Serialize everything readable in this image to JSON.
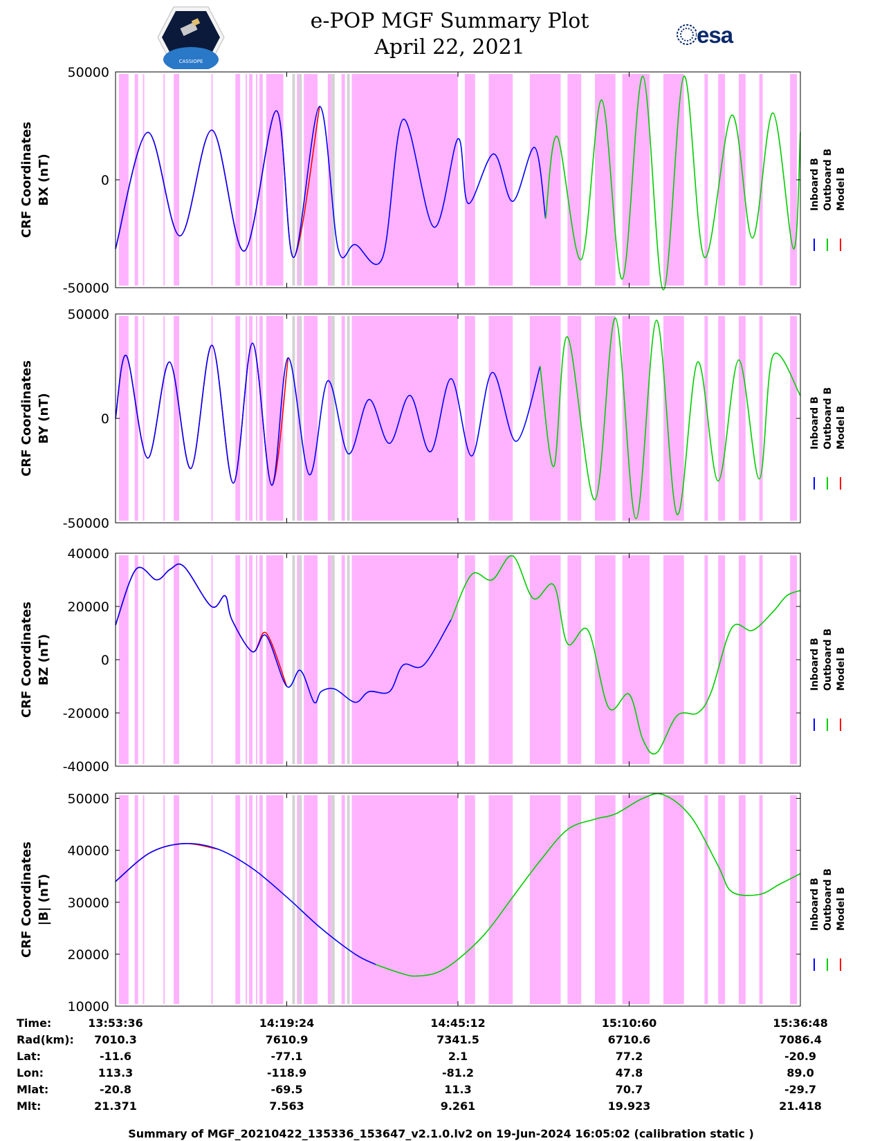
{
  "header": {
    "title": "e-POP MGF Summary Plot",
    "date": "April 22, 2021",
    "left_logo_text": "CASSIOPE",
    "right_logo_text": "esa"
  },
  "colors": {
    "inboard": "#0000ff",
    "outboard": "#00cc00",
    "model": "#ff0000",
    "shade_primary": "#ffb3ff",
    "shade_secondary": "#d3d3d3"
  },
  "legend": {
    "labels": [
      "Inboard B",
      "Outboard B",
      "Model B"
    ]
  },
  "chart_data": [
    {
      "type": "line",
      "ylabel_line1": "CRF Coordinates",
      "ylabel_line2": "BX (nT)",
      "ylim": [
        -50000,
        50000
      ],
      "yticks": [
        "50000",
        "0",
        "-50000"
      ],
      "ytick_values": [
        50000,
        0,
        -50000
      ],
      "series": [
        {
          "name": "Inboard B",
          "x": [
            0.0,
            0.047,
            0.094,
            0.141,
            0.188,
            0.235,
            0.26,
            0.298,
            0.325,
            0.35,
            0.39,
            0.42,
            0.465,
            0.5,
            0.515,
            0.552,
            0.58,
            0.612,
            0.628
          ],
          "values": [
            -32000,
            22000,
            -26000,
            23000,
            -33000,
            32000,
            -36000,
            34000,
            -32000,
            -30000,
            -36000,
            28000,
            -22000,
            19000,
            -11000,
            12000,
            -10000,
            15000,
            -18000
          ]
        },
        {
          "name": "Outboard B",
          "x": [
            0.628,
            0.645,
            0.68,
            0.71,
            0.74,
            0.77,
            0.8,
            0.83,
            0.86,
            0.9,
            0.93,
            0.96,
            0.99,
            1.0
          ],
          "values": [
            -18000,
            20000,
            -37000,
            37000,
            -46000,
            48000,
            -51000,
            48000,
            -36000,
            30000,
            -27000,
            31000,
            -32000,
            22000
          ]
        },
        {
          "name": "Model B",
          "x": [
            0.0,
            0.047,
            0.094,
            0.141,
            0.188,
            0.235,
            0.26,
            0.298
          ],
          "values": [
            -32000,
            22000,
            -26000,
            23000,
            -33000,
            32000,
            -36000,
            34000
          ]
        }
      ]
    },
    {
      "type": "line",
      "ylabel_line1": "CRF Coordinates",
      "ylabel_line2": "BY (nT)",
      "ylim": [
        -50000,
        50000
      ],
      "yticks": [
        "50000",
        "0",
        "-50000"
      ],
      "ytick_values": [
        50000,
        0,
        -50000
      ],
      "series": [
        {
          "name": "Inboard B",
          "x": [
            0.0,
            0.016,
            0.047,
            0.079,
            0.11,
            0.141,
            0.172,
            0.2,
            0.228,
            0.252,
            0.283,
            0.31,
            0.34,
            0.37,
            0.4,
            0.43,
            0.46,
            0.49,
            0.52,
            0.55,
            0.585,
            0.62
          ],
          "values": [
            0,
            30000,
            -19000,
            27000,
            -24000,
            35000,
            -31000,
            36000,
            -32000,
            29000,
            -27000,
            18000,
            -17000,
            9000,
            -12000,
            11000,
            -16000,
            19000,
            -18000,
            22000,
            -11000,
            25000
          ]
        },
        {
          "name": "Outboard B",
          "x": [
            0.62,
            0.64,
            0.66,
            0.7,
            0.73,
            0.76,
            0.79,
            0.82,
            0.85,
            0.88,
            0.91,
            0.94,
            0.96,
            1.0
          ],
          "values": [
            25000,
            -23000,
            39000,
            -39000,
            48000,
            -48000,
            47000,
            -46000,
            27000,
            -30000,
            28000,
            -29000,
            30000,
            11000
          ]
        },
        {
          "name": "Model B",
          "x": [
            0.0,
            0.016,
            0.047,
            0.079,
            0.11,
            0.141,
            0.172,
            0.2,
            0.228,
            0.252
          ],
          "values": [
            0,
            30000,
            -19000,
            27000,
            -24000,
            35000,
            -31000,
            36000,
            -32000,
            29000
          ]
        }
      ]
    },
    {
      "type": "line",
      "ylabel_line1": "CRF Coordinates",
      "ylabel_line2": "BZ (nT)",
      "ylim": [
        -40000,
        40000
      ],
      "yticks": [
        "40000",
        "20000",
        "0",
        "-20000",
        "-40000"
      ],
      "ytick_values": [
        40000,
        20000,
        0,
        -20000,
        -40000
      ],
      "series": [
        {
          "name": "Inboard B",
          "x": [
            0.0,
            0.03,
            0.06,
            0.08,
            0.1,
            0.14,
            0.16,
            0.17,
            0.2,
            0.22,
            0.25,
            0.27,
            0.29,
            0.3,
            0.32,
            0.35,
            0.37,
            0.4,
            0.42,
            0.45,
            0.49
          ],
          "values": [
            13000,
            34000,
            30000,
            34000,
            35000,
            20000,
            24000,
            15000,
            3000,
            9000,
            -10000,
            -4000,
            -16000,
            -12000,
            -11000,
            -16000,
            -12000,
            -12000,
            -2000,
            -2000,
            15000
          ]
        },
        {
          "name": "Outboard B",
          "x": [
            0.49,
            0.52,
            0.55,
            0.58,
            0.61,
            0.64,
            0.66,
            0.69,
            0.72,
            0.75,
            0.77,
            0.79,
            0.82,
            0.85,
            0.87,
            0.9,
            0.93,
            0.96,
            0.98,
            1.0
          ],
          "values": [
            15000,
            32000,
            30000,
            39000,
            23000,
            28000,
            6000,
            11000,
            -18000,
            -13000,
            -30000,
            -35000,
            -21000,
            -20000,
            -12000,
            12000,
            11000,
            18000,
            24000,
            26000
          ]
        },
        {
          "name": "Model B",
          "x": [
            0.0,
            0.03,
            0.06,
            0.08,
            0.1,
            0.14,
            0.16,
            0.17,
            0.2,
            0.22,
            0.25
          ],
          "values": [
            13000,
            34000,
            30000,
            34000,
            35000,
            20000,
            24000,
            15000,
            3000,
            10000,
            -10000
          ]
        }
      ]
    },
    {
      "type": "line",
      "ylabel_line1": "CRF Coordinates",
      "ylabel_line2": "|B| (nT)",
      "ylim": [
        10000,
        51000
      ],
      "yticks": [
        "50000",
        "40000",
        "30000",
        "20000",
        "10000"
      ],
      "ytick_values": [
        50000,
        40000,
        30000,
        20000,
        10000
      ],
      "series": [
        {
          "name": "Inboard B",
          "x": [
            0.0,
            0.05,
            0.1,
            0.15,
            0.2,
            0.25,
            0.3,
            0.35,
            0.38
          ],
          "values": [
            34000,
            39500,
            41300,
            40200,
            36500,
            31000,
            25000,
            20000,
            18000
          ]
        },
        {
          "name": "Outboard B",
          "x": [
            0.38,
            0.42,
            0.44,
            0.47,
            0.5,
            0.54,
            0.58,
            0.62,
            0.66,
            0.7,
            0.73,
            0.77,
            0.8,
            0.84,
            0.88,
            0.9,
            0.94,
            0.97,
            1.0
          ],
          "values": [
            18000,
            16200,
            15800,
            16500,
            19000,
            24000,
            31000,
            38000,
            44000,
            46000,
            47000,
            50000,
            50700,
            46500,
            37000,
            32000,
            31500,
            33500,
            35500
          ]
        },
        {
          "name": "Model B",
          "x": [
            0.0,
            0.05,
            0.1,
            0.15
          ],
          "values": [
            34000,
            39500,
            41300,
            40200
          ]
        }
      ]
    }
  ],
  "shading": {
    "primary_bands": [
      [
        0.005,
        0.019
      ],
      [
        0.028,
        0.033
      ],
      [
        0.04,
        0.042
      ],
      [
        0.07,
        0.072
      ],
      [
        0.085,
        0.093
      ],
      [
        0.14,
        0.142
      ],
      [
        0.175,
        0.182
      ],
      [
        0.19,
        0.192
      ],
      [
        0.195,
        0.2
      ],
      [
        0.205,
        0.207
      ],
      [
        0.21,
        0.215
      ],
      [
        0.22,
        0.245
      ],
      [
        0.26,
        0.262
      ],
      [
        0.265,
        0.27
      ],
      [
        0.275,
        0.295
      ],
      [
        0.31,
        0.315
      ],
      [
        0.33,
        0.335
      ],
      [
        0.345,
        0.5
      ],
      [
        0.51,
        0.525
      ],
      [
        0.545,
        0.58
      ],
      [
        0.605,
        0.65
      ],
      [
        0.66,
        0.68
      ],
      [
        0.7,
        0.73
      ],
      [
        0.74,
        0.78
      ],
      [
        0.8,
        0.83
      ],
      [
        0.86,
        0.865
      ],
      [
        0.88,
        0.89
      ],
      [
        0.91,
        0.92
      ],
      [
        0.94,
        0.945
      ],
      [
        0.985,
        0.995
      ]
    ],
    "secondary_bands": [
      [
        0.258,
        0.262
      ],
      [
        0.268,
        0.272
      ],
      [
        0.315,
        0.32
      ],
      [
        0.338,
        0.342
      ]
    ]
  },
  "time_table": {
    "row_labels": [
      "Time:",
      "Rad(km):",
      "Lat:",
      "Lon:",
      "Mlat:",
      "Mlt:"
    ],
    "columns": [
      [
        "13:53:36",
        "7010.3",
        "-11.6",
        "113.3",
        "-20.8",
        "21.371"
      ],
      [
        "14:19:24",
        "7610.9",
        "-77.1",
        "-118.9",
        "-69.5",
        "7.563"
      ],
      [
        "14:45:12",
        "7341.5",
        "2.1",
        "-81.2",
        "11.3",
        "9.261"
      ],
      [
        "15:10:60",
        "6710.6",
        "77.2",
        "47.8",
        "70.7",
        "19.923"
      ],
      [
        "15:36:48",
        "7086.4",
        "-20.9",
        "89.0",
        "-29.7",
        "21.418"
      ]
    ]
  },
  "footer": "Summary of MGF_20210422_135336_153647_v2.1.0.lv2 on 19-Jun-2024 16:05:02 (calibration static )"
}
